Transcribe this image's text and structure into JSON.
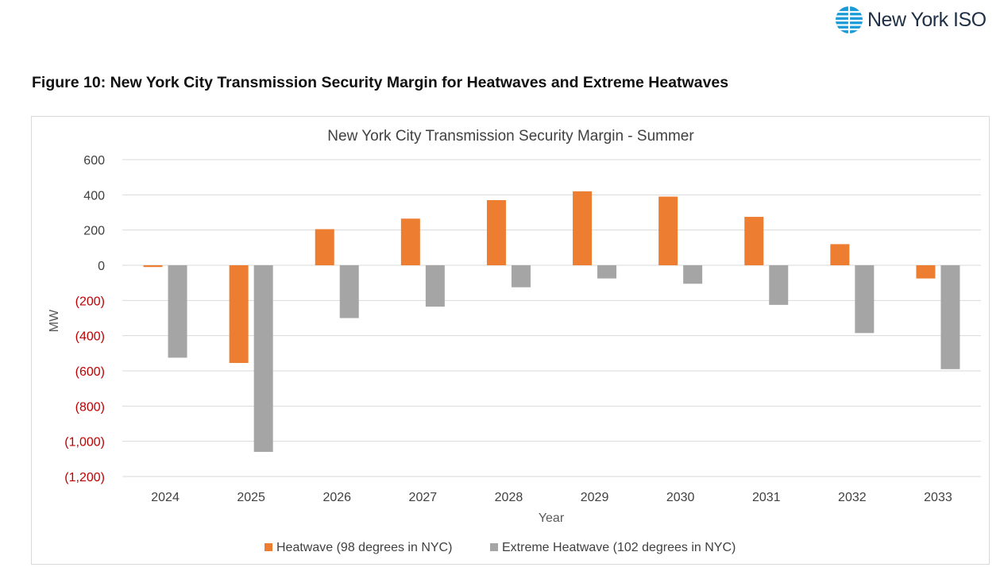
{
  "header": {
    "logo_text": "New York ISO",
    "figure_title": "Figure 10: New York City Transmission Security Margin for Heatwaves and Extreme Heatwaves"
  },
  "chart_data": {
    "type": "bar",
    "title": "New York City Transmission Security Margin - Summer",
    "xlabel": "Year",
    "ylabel": "MW",
    "ylim": [
      -1200,
      600
    ],
    "yticks": [
      600,
      400,
      200,
      0,
      -200,
      -400,
      -600,
      -800,
      -1000,
      -1200
    ],
    "ytick_labels": [
      "600",
      "400",
      "200",
      "0",
      "(200)",
      "(400)",
      "(600)",
      "(800)",
      "(1,000)",
      "(1,200)"
    ],
    "negative_label_color": "#c00000",
    "grid": true,
    "legend_position": "bottom",
    "categories": [
      "2024",
      "2025",
      "2026",
      "2027",
      "2028",
      "2029",
      "2030",
      "2031",
      "2032",
      "2033"
    ],
    "series": [
      {
        "name": "Heatwave (98 degrees in NYC)",
        "color": "#ed7d31",
        "values": [
          -10,
          -555,
          205,
          265,
          370,
          420,
          390,
          275,
          120,
          -75
        ]
      },
      {
        "name": "Extreme Heatwave (102 degrees in NYC)",
        "color": "#a5a5a5",
        "values": [
          -525,
          -1060,
          -300,
          -235,
          -125,
          -75,
          -105,
          -225,
          -385,
          -590
        ]
      }
    ]
  }
}
